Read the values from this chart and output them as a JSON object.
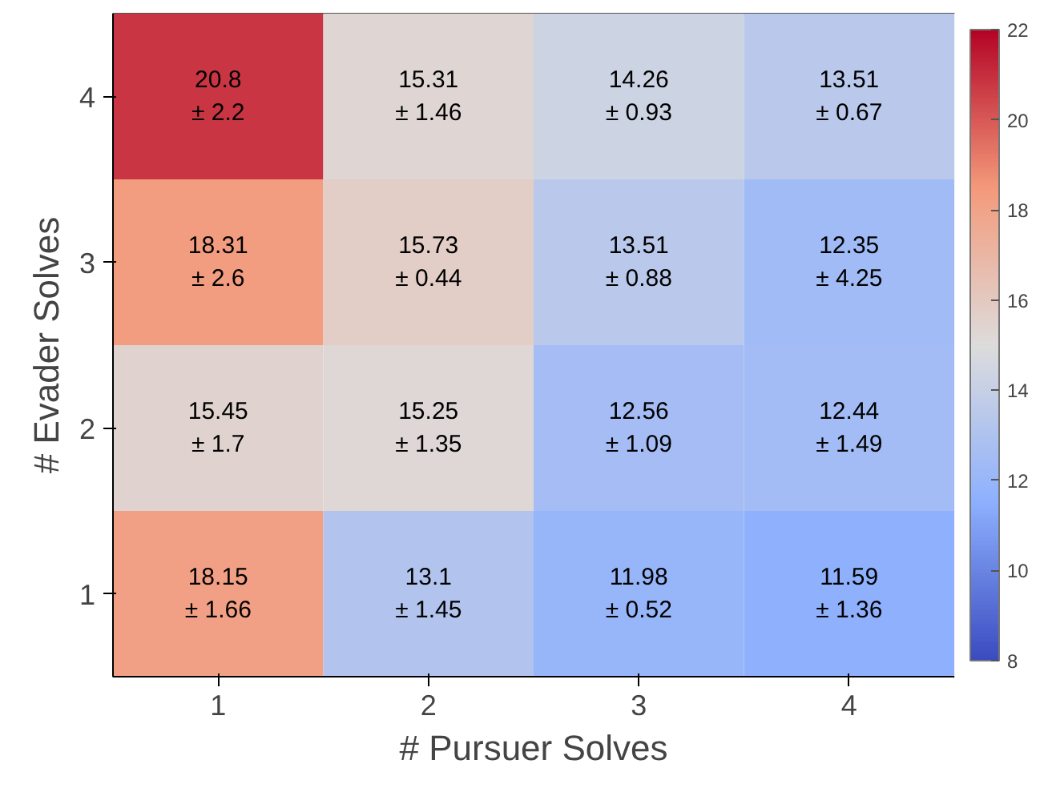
{
  "chart_data": {
    "type": "heatmap",
    "xlabel": "# Pursuer Solves",
    "ylabel": "# Evader Solves",
    "categories": [
      "1",
      "2",
      "3",
      "4"
    ],
    "y_categories": [
      "4",
      "3",
      "2",
      "1"
    ],
    "cells": [
      [
        20.8,
        15.31,
        14.26,
        13.51
      ],
      [
        18.31,
        15.73,
        13.51,
        12.35
      ],
      [
        15.45,
        15.25,
        12.56,
        12.44
      ],
      [
        18.15,
        13.1,
        11.98,
        11.59
      ]
    ],
    "cell_labels": [
      [
        "20.8\n± 2.2",
        "15.31\n± 1.46",
        "14.26\n± 0.93",
        "13.51\n± 0.67"
      ],
      [
        "18.31\n± 2.6",
        "15.73\n± 0.44",
        "13.51\n± 0.88",
        "12.35\n± 4.25"
      ],
      [
        "15.45\n± 1.7",
        "15.25\n± 1.35",
        "12.56\n± 1.09",
        "12.44\n± 1.49"
      ],
      [
        "18.15\n± 1.66",
        "13.1\n± 1.45",
        "11.98\n± 0.52",
        "11.59\n± 1.36"
      ]
    ],
    "clim": [
      8,
      22
    ],
    "cticks": [
      8,
      10,
      12,
      14,
      16,
      18,
      20,
      22
    ]
  }
}
